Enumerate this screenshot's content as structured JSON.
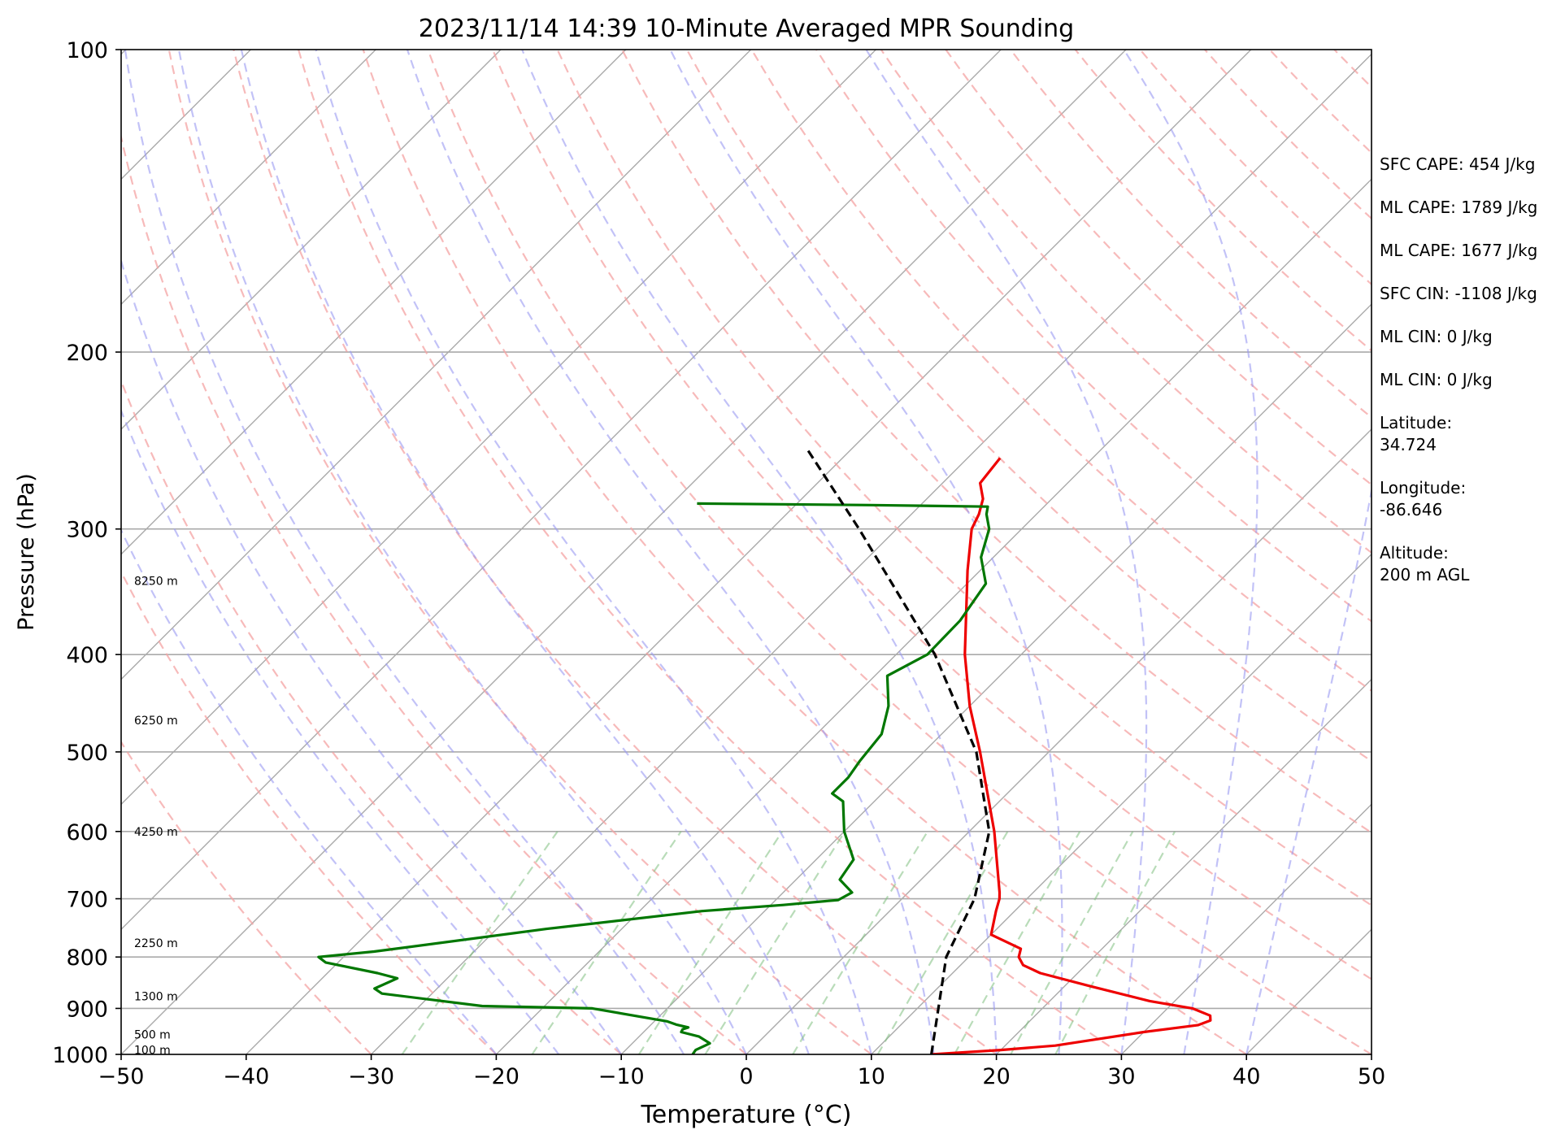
{
  "title": "2023/11/14 14:39 10-Minute Averaged MPR Sounding",
  "chart_data": {
    "type": "line",
    "title": "2023/11/14 14:39 10-Minute Averaged MPR Sounding",
    "xlabel": "Temperature (°C)",
    "ylabel": "Pressure (hPa)",
    "xlim": [
      -50,
      50
    ],
    "ylim": [
      1000,
      100
    ],
    "y_scale": "log",
    "grid": true,
    "x_ticks": [
      -50,
      -40,
      -30,
      -20,
      -10,
      0,
      10,
      20,
      30,
      40,
      50
    ],
    "x_tick_labels": [
      "−50",
      "−40",
      "−30",
      "−20",
      "−10",
      "0",
      "10",
      "20",
      "30",
      "40",
      "50"
    ],
    "y_ticks": [
      1000,
      900,
      800,
      700,
      600,
      500,
      400,
      300,
      200,
      100
    ],
    "y_tick_labels": [
      "1000",
      "900",
      "800",
      "700",
      "600",
      "500",
      "400",
      "300",
      "200",
      "100"
    ],
    "skew": "skew-T",
    "series": [
      {
        "kind": "temperature",
        "color": "#ee0000",
        "points": [
          [
            1000,
            14.8
          ],
          [
            990,
            20.0
          ],
          [
            980,
            24.0
          ],
          [
            950,
            30.0
          ],
          [
            935,
            33.8
          ],
          [
            925,
            34.4
          ],
          [
            915,
            34.0
          ],
          [
            900,
            32.0
          ],
          [
            885,
            28.0
          ],
          [
            855,
            22.0
          ],
          [
            830,
            17.0
          ],
          [
            815,
            15.0
          ],
          [
            800,
            14.0
          ],
          [
            785,
            13.5
          ],
          [
            760,
            10.0
          ],
          [
            720,
            8.5
          ],
          [
            700,
            7.8
          ],
          [
            690,
            7.3
          ],
          [
            600,
            2.0
          ],
          [
            500,
            -5.5
          ],
          [
            450,
            -10.0
          ],
          [
            400,
            -14.5
          ],
          [
            330,
            -21.0
          ],
          [
            300,
            -24.0
          ],
          [
            290,
            -24.6
          ],
          [
            280,
            -25.5
          ],
          [
            270,
            -27.0
          ],
          [
            255,
            -27.4
          ]
        ]
      },
      {
        "kind": "dewpoint",
        "color": "#007700",
        "points": [
          [
            1000,
            -4.3
          ],
          [
            990,
            -4.4
          ],
          [
            975,
            -3.8
          ],
          [
            960,
            -5.2
          ],
          [
            950,
            -7.0
          ],
          [
            944,
            -7.1
          ],
          [
            940,
            -6.8
          ],
          [
            934,
            -8.0
          ],
          [
            927,
            -9.0
          ],
          [
            900,
            -16.0
          ],
          [
            895,
            -25.0
          ],
          [
            870,
            -34.0
          ],
          [
            860,
            -35.0
          ],
          [
            840,
            -34.0
          ],
          [
            830,
            -36.0
          ],
          [
            810,
            -41.0
          ],
          [
            800,
            -42.0
          ],
          [
            790,
            -38.0
          ],
          [
            750,
            -26.0
          ],
          [
            720,
            -15.0
          ],
          [
            710,
            -9.0
          ],
          [
            702,
            -5.0
          ],
          [
            690,
            -4.5
          ],
          [
            670,
            -6.5
          ],
          [
            640,
            -7.0
          ],
          [
            600,
            -10.0
          ],
          [
            560,
            -12.5
          ],
          [
            550,
            -14.0
          ],
          [
            530,
            -14.0
          ],
          [
            510,
            -14.4
          ],
          [
            480,
            -14.8
          ],
          [
            450,
            -16.5
          ],
          [
            420,
            -19.0
          ],
          [
            400,
            -17.5
          ],
          [
            370,
            -17.6
          ],
          [
            340,
            -18.5
          ],
          [
            320,
            -21.0
          ],
          [
            300,
            -22.6
          ],
          [
            290,
            -24.0
          ],
          [
            285,
            -24.5
          ],
          [
            284,
            -34.0
          ],
          [
            283,
            -48.0
          ]
        ]
      },
      {
        "kind": "parcel",
        "color": "#000000",
        "dashed": true,
        "points": [
          [
            1000,
            14.8
          ],
          [
            800,
            8.2
          ],
          [
            700,
            5.8
          ],
          [
            600,
            1.6
          ],
          [
            500,
            -5.8
          ],
          [
            400,
            -16.9
          ],
          [
            300,
            -33.0
          ],
          [
            250,
            -43.5
          ]
        ]
      }
    ],
    "height_labels": [
      {
        "p": 338,
        "text": "8250 m"
      },
      {
        "p": 465,
        "text": "6250 m"
      },
      {
        "p": 600,
        "text": "4250 m"
      },
      {
        "p": 775,
        "text": "2250 m"
      },
      {
        "p": 875,
        "text": "1300 m"
      },
      {
        "p": 955,
        "text": "500 m"
      },
      {
        "p": 990,
        "text": "100 m"
      }
    ]
  },
  "stats": [
    {
      "text": "SFC CAPE: 454 J/kg"
    },
    {
      "text": "ML CAPE: 1789 J/kg"
    },
    {
      "text": "ML CAPE: 1677 J/kg"
    },
    {
      "text": "SFC CIN: -1108 J/kg"
    },
    {
      "text": "ML CIN: 0 J/kg"
    },
    {
      "text": "ML CIN: 0 J/kg"
    },
    {
      "text": "Latitude:",
      "text2": "34.724"
    },
    {
      "text": "Longitude:",
      "text2": "-86.646"
    },
    {
      "text": "Altitude:",
      "text2": "200 m AGL"
    }
  ]
}
